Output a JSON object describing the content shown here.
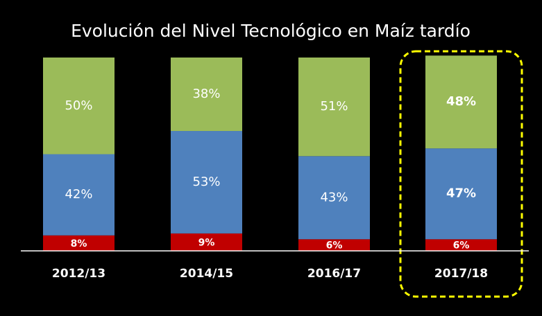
{
  "chart_data": {
    "type": "stacked_bar",
    "title": "Evolución del Nivel Tecnológico en Maíz tardío",
    "categories": [
      "2012/13",
      "2014/15",
      "2016/17",
      "2017/18"
    ],
    "series": [
      {
        "color": "#c00000",
        "values": [
          8,
          9,
          6,
          6
        ],
        "value_labels": [
          "8%",
          "9%",
          "6%",
          "6%"
        ]
      },
      {
        "color": "#4f81bd",
        "values": [
          42,
          53,
          43,
          47
        ],
        "value_labels": [
          "42%",
          "53%",
          "43%",
          "47%"
        ]
      },
      {
        "color": "#9bbb59",
        "values": [
          50,
          38,
          51,
          48
        ],
        "value_labels": [
          "50%",
          "38%",
          "51%",
          "48%"
        ]
      }
    ],
    "ylim": [
      0,
      100
    ],
    "highlight": 3,
    "highlight_color": "#ffff00"
  }
}
